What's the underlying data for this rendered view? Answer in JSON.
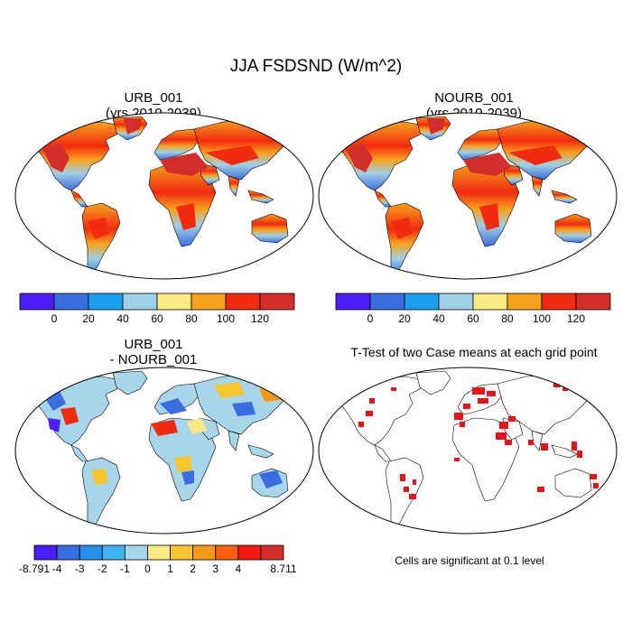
{
  "figure": {
    "title": "JJA FSDSND (W/m^2)"
  },
  "panels": [
    {
      "id": "urb",
      "title": [
        "URB_001",
        "(yrs 2010-2039)"
      ]
    },
    {
      "id": "nourb",
      "title": [
        "NOURB_001",
        "(yrs 2010-2039)"
      ]
    },
    {
      "id": "diff",
      "title": [
        "URB_001",
        "- NOURB_001"
      ]
    },
    {
      "id": "ttest",
      "title": [
        "T-Test of two Case means at each grid point"
      ]
    }
  ],
  "colorbars": {
    "absolute": {
      "colors": [
        "#4a1ef5",
        "#3a6ee0",
        "#1aa0ef",
        "#9fcfe6",
        "#fbea84",
        "#f7a21c",
        "#f22b10",
        "#d22f2c"
      ],
      "labels": [
        "0",
        "20",
        "40",
        "60",
        "80",
        "100",
        "120"
      ]
    },
    "difference": {
      "colors": [
        "#4a1ef5",
        "#3a6ee0",
        "#2a8fe8",
        "#3fb2ef",
        "#a7d6eb",
        "#fbea84",
        "#f8c52a",
        "#f59a17",
        "#f66010",
        "#f21a10",
        "#d22f2c"
      ],
      "labels": [
        "-8.791",
        "-4",
        "-3",
        "-2",
        "-1",
        "0",
        "1",
        "2",
        "3",
        "4",
        "8.711"
      ]
    }
  },
  "significance": {
    "note": "Cells are significant at 0.1 level",
    "color": "#e8141c"
  }
}
